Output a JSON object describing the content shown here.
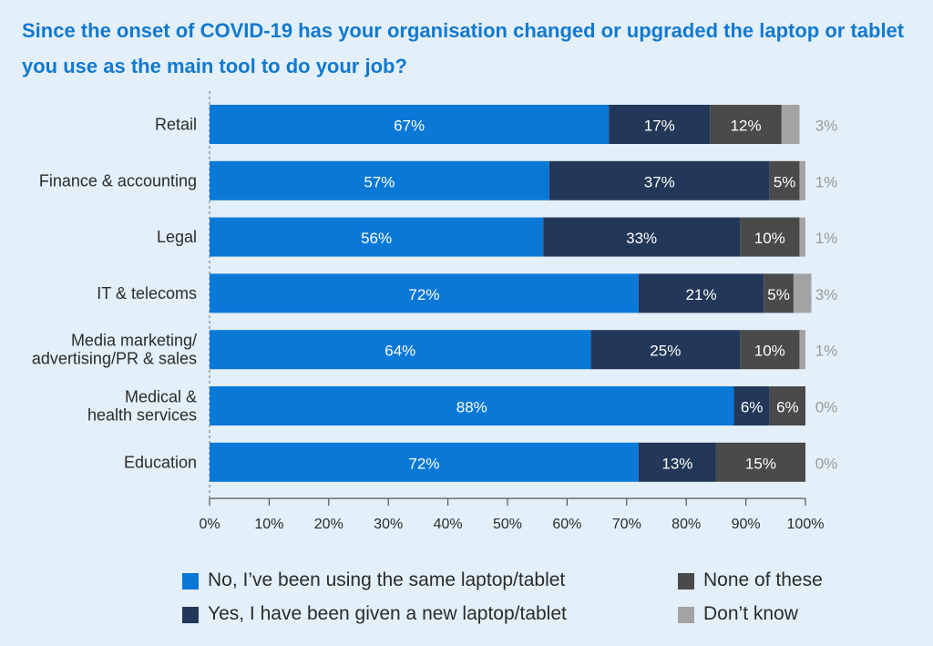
{
  "title": "Since the onset of COVID-19 has your organisation changed or upgraded the laptop or tablet you use as the main tool to do your job?",
  "chart_data": {
    "type": "bar",
    "orientation": "horizontal",
    "stacked": true,
    "categories": [
      [
        "Retail"
      ],
      [
        "Finance & accounting"
      ],
      [
        "Legal"
      ],
      [
        "IT & telecoms"
      ],
      [
        "Media marketing/",
        "advertising/PR & sales"
      ],
      [
        "Medical &",
        "health services"
      ],
      [
        "Education"
      ]
    ],
    "series": [
      {
        "name": "No, I’ve been using the same laptop/tablet",
        "color": "#0a78d7",
        "values": [
          67,
          57,
          56,
          72,
          64,
          88,
          72
        ]
      },
      {
        "name": "Yes, I have been given a new laptop/tablet",
        "color": "#233859",
        "values": [
          17,
          37,
          33,
          21,
          25,
          6,
          13
        ]
      },
      {
        "name": "None of these",
        "color": "#4a4a4a",
        "values": [
          12,
          5,
          10,
          5,
          10,
          6,
          15
        ]
      },
      {
        "name": "Don’t know",
        "color": "#a3a3a3",
        "values": [
          3,
          1,
          1,
          3,
          1,
          0,
          0
        ]
      }
    ],
    "xlim": [
      0,
      100
    ],
    "xticks": [
      "0%",
      "10%",
      "20%",
      "30%",
      "40%",
      "50%",
      "60%",
      "70%",
      "80%",
      "90%",
      "100%"
    ],
    "value_suffix": "%",
    "legend_position": "bottom",
    "grid": false
  }
}
